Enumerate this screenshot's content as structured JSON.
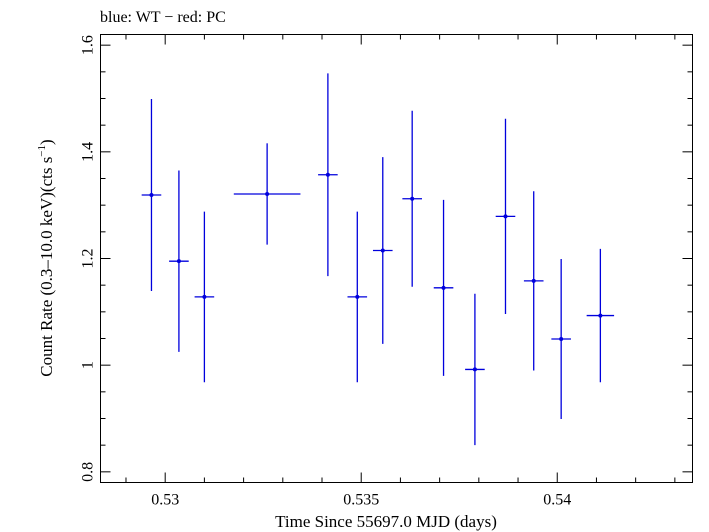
{
  "header": {
    "label": "blue: WT − red: PC"
  },
  "chart_data": {
    "type": "scatter",
    "title": "blue: WT − red: PC",
    "xlabel": "Time Since 55697.0 MJD (days)",
    "ylabel_main": "Count Rate (0.3–10.0 keV)(cts s",
    "ylabel_sup": "−1",
    "ylabel_tail": ")",
    "xlim": [
      0.52835,
      0.54345
    ],
    "ylim": [
      0.78,
      1.62
    ],
    "xticks": [
      0.53,
      0.535,
      0.54
    ],
    "xtick_labels": [
      "0.53",
      "0.535",
      "0.54"
    ],
    "yticks": [
      0.8,
      1.0,
      1.2,
      1.4,
      1.6
    ],
    "ytick_labels": [
      "0.8",
      "1",
      "1.2",
      "1.4",
      "1.6"
    ],
    "grid": false,
    "series": [
      {
        "name": "WT",
        "color": "#0000dd",
        "points": [
          {
            "x": 0.52965,
            "y": 1.319,
            "xerr": 0.00025,
            "yerr": 0.18
          },
          {
            "x": 0.53035,
            "y": 1.195,
            "xerr": 0.00025,
            "yerr": 0.17
          },
          {
            "x": 0.531,
            "y": 1.128,
            "xerr": 0.00025,
            "yerr": 0.16
          },
          {
            "x": 0.5326,
            "y": 1.321,
            "xerr": 0.00085,
            "yerr": 0.095
          },
          {
            "x": 0.53415,
            "y": 1.357,
            "xerr": 0.00025,
            "yerr": 0.19
          },
          {
            "x": 0.5349,
            "y": 1.128,
            "xerr": 0.00025,
            "yerr": 0.16
          },
          {
            "x": 0.53555,
            "y": 1.215,
            "xerr": 0.00025,
            "yerr": 0.175
          },
          {
            "x": 0.5363,
            "y": 1.312,
            "xerr": 0.00025,
            "yerr": 0.165
          },
          {
            "x": 0.5371,
            "y": 1.145,
            "xerr": 0.00025,
            "yerr": 0.165
          },
          {
            "x": 0.5379,
            "y": 0.992,
            "xerr": 0.00025,
            "yerr": 0.142
          },
          {
            "x": 0.53868,
            "y": 1.279,
            "xerr": 0.00025,
            "yerr": 0.183
          },
          {
            "x": 0.5394,
            "y": 1.158,
            "xerr": 0.00025,
            "yerr": 0.168
          },
          {
            "x": 0.5401,
            "y": 1.049,
            "xerr": 0.00025,
            "yerr": 0.15
          },
          {
            "x": 0.5411,
            "y": 1.093,
            "xerr": 0.00035,
            "yerr": 0.125
          }
        ]
      }
    ]
  }
}
